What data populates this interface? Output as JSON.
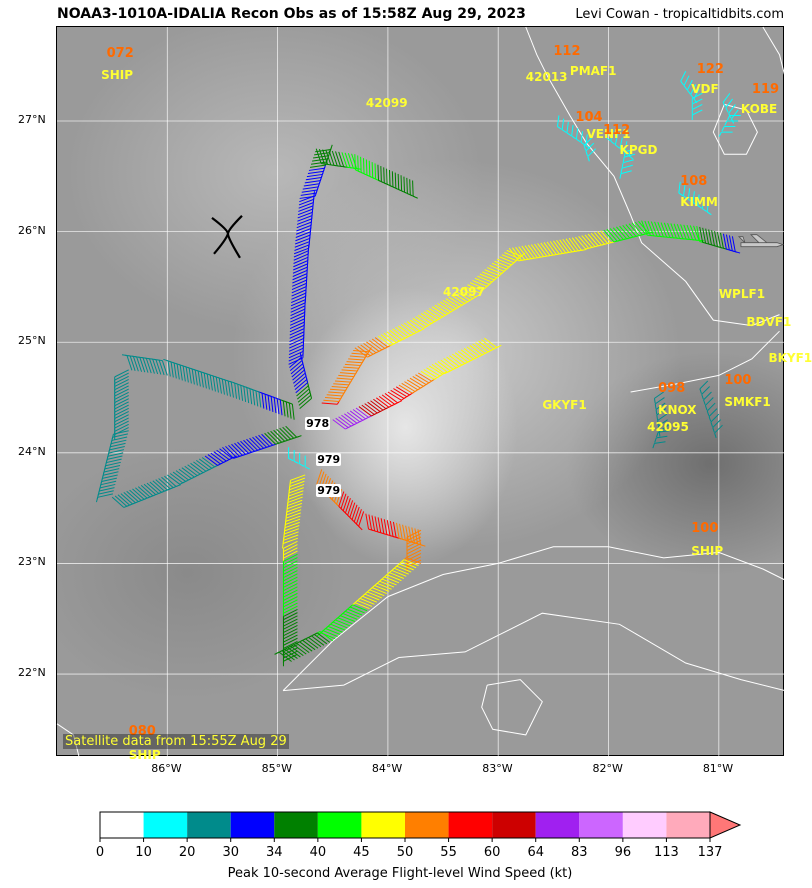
{
  "header": {
    "title": "NOAA3-1010A-IDALIA Recon Obs as of 15:58Z Aug 29, 2023",
    "credit": "Levi Cowan - tropicaltidbits.com"
  },
  "map": {
    "extent": {
      "lon_min": -87.0,
      "lon_max": -80.4,
      "lat_min": 21.25,
      "lat_max": 27.85
    },
    "lon_ticks": [
      {
        "value": -86,
        "label": "86°W"
      },
      {
        "value": -85,
        "label": "85°W"
      },
      {
        "value": -84,
        "label": "84°W"
      },
      {
        "value": -83,
        "label": "83°W"
      },
      {
        "value": -82,
        "label": "82°W"
      },
      {
        "value": -81,
        "label": "81°W"
      }
    ],
    "lat_ticks": [
      {
        "value": 27,
        "label": "27°N"
      },
      {
        "value": 26,
        "label": "26°N"
      },
      {
        "value": 25,
        "label": "25°N"
      },
      {
        "value": 24,
        "label": "24°N"
      },
      {
        "value": 23,
        "label": "23°N"
      },
      {
        "value": 22,
        "label": "22°N"
      }
    ],
    "satellite_note": "Satellite data from 15:55Z Aug 29",
    "grid": true,
    "storm_symbol": {
      "lon": -85.45,
      "lat": 25.98
    }
  },
  "stations": [
    {
      "id": "SHIP",
      "lon": -86.6,
      "lat": 27.48
    },
    {
      "id": "42099",
      "lon": -84.2,
      "lat": 27.23
    },
    {
      "id": "42013",
      "lon": -82.75,
      "lat": 27.46
    },
    {
      "id": "PMAF1",
      "lon": -82.35,
      "lat": 27.52
    },
    {
      "id": "VDF",
      "lon": -81.25,
      "lat": 27.35
    },
    {
      "id": "KOBE",
      "lon": -80.8,
      "lat": 27.17
    },
    {
      "id": "VENF1",
      "lon": -82.2,
      "lat": 26.95
    },
    {
      "id": "KPGD",
      "lon": -81.9,
      "lat": 26.8
    },
    {
      "id": "KIMM",
      "lon": -81.35,
      "lat": 26.33
    },
    {
      "id": "WPLF1",
      "lon": -81.0,
      "lat": 25.5
    },
    {
      "id": "BDVF1",
      "lon": -80.75,
      "lat": 25.25
    },
    {
      "id": "BKYF1",
      "lon": -80.55,
      "lat": 24.92
    },
    {
      "id": "42097",
      "lon": -83.5,
      "lat": 25.52
    },
    {
      "id": "GKYF1",
      "lon": -82.6,
      "lat": 24.5
    },
    {
      "id": "KNOX",
      "lon": -81.55,
      "lat": 24.45
    },
    {
      "id": "SMKF1",
      "lon": -80.95,
      "lat": 24.52
    },
    {
      "id": "42095",
      "lon": -81.65,
      "lat": 24.3
    },
    {
      "id": "SHIP",
      "lon": -81.25,
      "lat": 23.18
    },
    {
      "id": "SHIP",
      "lon": -86.35,
      "lat": 21.33
    }
  ],
  "peak_speeds": [
    {
      "value": "072",
      "lon": -86.55,
      "lat": 27.68
    },
    {
      "value": "112",
      "lon": -82.5,
      "lat": 27.7
    },
    {
      "value": "122",
      "lon": -81.2,
      "lat": 27.53
    },
    {
      "value": "119",
      "lon": -80.7,
      "lat": 27.35
    },
    {
      "value": "104",
      "lon": -82.3,
      "lat": 27.1
    },
    {
      "value": "112",
      "lon": -82.05,
      "lat": 26.98
    },
    {
      "value": "108",
      "lon": -81.35,
      "lat": 26.52
    },
    {
      "value": "100",
      "lon": -80.95,
      "lat": 24.72
    },
    {
      "value": "098",
      "lon": -81.55,
      "lat": 24.65
    },
    {
      "value": "100",
      "lon": -81.25,
      "lat": 23.38
    },
    {
      "value": "080",
      "lon": -86.35,
      "lat": 21.55
    }
  ],
  "pressures": [
    {
      "value": "978",
      "lon": -84.75,
      "lat": 24.32
    },
    {
      "value": "979",
      "lon": -84.65,
      "lat": 24.0
    },
    {
      "value": "979",
      "lon": -84.65,
      "lat": 23.72
    }
  ],
  "colorbar": {
    "title": "Peak 10-second Average Flight-level Wind Speed (kt)",
    "bins": [
      {
        "min": 0,
        "max": 10,
        "color": "#ffffff"
      },
      {
        "min": 10,
        "max": 20,
        "color": "#00ffff"
      },
      {
        "min": 20,
        "max": 30,
        "color": "#008b8b"
      },
      {
        "min": 30,
        "max": 34,
        "color": "#0000ff"
      },
      {
        "min": 34,
        "max": 40,
        "color": "#008000"
      },
      {
        "min": 40,
        "max": 45,
        "color": "#00ff00"
      },
      {
        "min": 45,
        "max": 50,
        "color": "#ffff00"
      },
      {
        "min": 50,
        "max": 55,
        "color": "#ff7f00"
      },
      {
        "min": 55,
        "max": 60,
        "color": "#ff0000"
      },
      {
        "min": 60,
        "max": 64,
        "color": "#cd0000"
      },
      {
        "min": 64,
        "max": 83,
        "color": "#a020f0"
      },
      {
        "min": 83,
        "max": 96,
        "color": "#cc66ff"
      },
      {
        "min": 96,
        "max": 113,
        "color": "#ffccff"
      },
      {
        "min": 113,
        "max": 137,
        "color": "#ffaabb"
      }
    ],
    "tick_labels": [
      "0",
      "10",
      "20",
      "30",
      "34",
      "40",
      "45",
      "50",
      "55",
      "60",
      "64",
      "83",
      "96",
      "113",
      "137"
    ],
    "extend_color": "#ff7777"
  },
  "flight_legs": [
    {
      "name": "north-leg",
      "points": [
        {
          "lon": -84.8,
          "lat": 24.4,
          "kt": 35
        },
        {
          "lon": -84.9,
          "lat": 24.8,
          "kt": 32
        },
        {
          "lon": -84.88,
          "lat": 25.3,
          "kt": 31
        },
        {
          "lon": -84.85,
          "lat": 25.8,
          "kt": 30
        },
        {
          "lon": -84.8,
          "lat": 26.3,
          "kt": 31
        },
        {
          "lon": -84.65,
          "lat": 26.75,
          "kt": 36
        },
        {
          "lon": -84.3,
          "lat": 26.7,
          "kt": 42
        },
        {
          "lon": -83.75,
          "lat": 26.45,
          "kt": 36
        }
      ]
    },
    {
      "name": "west-loop",
      "points": [
        {
          "lon": -84.85,
          "lat": 24.3,
          "kt": 36
        },
        {
          "lon": -85.4,
          "lat": 24.5,
          "kt": 25
        },
        {
          "lon": -86.0,
          "lat": 24.7,
          "kt": 25
        },
        {
          "lon": -86.35,
          "lat": 24.75,
          "kt": 25
        },
        {
          "lon": -86.35,
          "lat": 24.2,
          "kt": 25
        },
        {
          "lon": -86.5,
          "lat": 23.6,
          "kt": 26
        },
        {
          "lon": -86.0,
          "lat": 23.8,
          "kt": 28
        },
        {
          "lon": -85.5,
          "lat": 24.05,
          "kt": 31
        },
        {
          "lon": -84.9,
          "lat": 24.25,
          "kt": 36
        }
      ]
    },
    {
      "name": "northeast-leg",
      "points": [
        {
          "lon": -84.6,
          "lat": 24.45,
          "kt": 55
        },
        {
          "lon": -84.3,
          "lat": 24.95,
          "kt": 52
        },
        {
          "lon": -83.8,
          "lat": 25.2,
          "kt": 47
        },
        {
          "lon": -83.3,
          "lat": 25.5,
          "kt": 48
        },
        {
          "lon": -82.9,
          "lat": 25.85,
          "kt": 48
        },
        {
          "lon": -82.3,
          "lat": 25.95,
          "kt": 47
        },
        {
          "lon": -81.7,
          "lat": 26.1,
          "kt": 42
        },
        {
          "lon": -81.2,
          "lat": 26.05,
          "kt": 40
        },
        {
          "lon": -80.85,
          "lat": 25.95,
          "kt": 31
        }
      ]
    },
    {
      "name": "east-leg",
      "points": [
        {
          "lon": -84.5,
          "lat": 24.3,
          "kt": 70
        },
        {
          "lon": -84.0,
          "lat": 24.55,
          "kt": 57
        },
        {
          "lon": -83.6,
          "lat": 24.8,
          "kt": 47
        },
        {
          "lon": -83.1,
          "lat": 25.05,
          "kt": 46
        }
      ]
    },
    {
      "name": "southeast-leg",
      "points": [
        {
          "lon": -84.6,
          "lat": 23.85,
          "kt": 52
        },
        {
          "lon": -84.2,
          "lat": 23.45,
          "kt": 58
        },
        {
          "lon": -83.7,
          "lat": 23.3,
          "kt": 52
        },
        {
          "lon": -83.7,
          "lat": 23.0,
          "kt": 50
        },
        {
          "lon": -84.1,
          "lat": 22.65,
          "kt": 46
        },
        {
          "lon": -84.5,
          "lat": 22.3,
          "kt": 40
        },
        {
          "lon": -84.9,
          "lat": 22.1,
          "kt": 36
        }
      ]
    },
    {
      "name": "south-leg",
      "points": [
        {
          "lon": -84.75,
          "lat": 23.8,
          "kt": 48
        },
        {
          "lon": -84.82,
          "lat": 23.2,
          "kt": 46
        },
        {
          "lon": -84.82,
          "lat": 22.7,
          "kt": 41
        },
        {
          "lon": -84.82,
          "lat": 22.15,
          "kt": 36
        }
      ]
    }
  ],
  "surface_obs": [
    {
      "points": [
        {
          "lon": -82.45,
          "lat": 27.05,
          "kt": 15
        },
        {
          "lon": -82.15,
          "lat": 26.85,
          "kt": 15
        },
        {
          "lon": -82.1,
          "lat": 26.7,
          "kt": 15
        }
      ]
    },
    {
      "points": [
        {
          "lon": -82.0,
          "lat": 26.95,
          "kt": 15
        },
        {
          "lon": -81.75,
          "lat": 26.75,
          "kt": 15
        },
        {
          "lon": -81.8,
          "lat": 26.5,
          "kt": 15
        }
      ]
    },
    {
      "points": [
        {
          "lon": -81.3,
          "lat": 27.45,
          "kt": 15
        },
        {
          "lon": -81.15,
          "lat": 27.25,
          "kt": 15
        },
        {
          "lon": -81.15,
          "lat": 27.05,
          "kt": 15
        }
      ]
    },
    {
      "points": [
        {
          "lon": -80.9,
          "lat": 27.25,
          "kt": 15
        },
        {
          "lon": -80.8,
          "lat": 27.05,
          "kt": 15
        },
        {
          "lon": -80.9,
          "lat": 26.85,
          "kt": 15
        }
      ]
    },
    {
      "points": [
        {
          "lon": -81.35,
          "lat": 26.45,
          "kt": 15
        },
        {
          "lon": -81.05,
          "lat": 26.25,
          "kt": 15
        }
      ]
    },
    {
      "points": [
        {
          "lon": -81.5,
          "lat": 24.55,
          "kt": 25
        },
        {
          "lon": -81.45,
          "lat": 24.2,
          "kt": 25
        },
        {
          "lon": -81.5,
          "lat": 24.05,
          "kt": 25
        }
      ]
    },
    {
      "points": [
        {
          "lon": -81.1,
          "lat": 24.65,
          "kt": 25
        },
        {
          "lon": -81.0,
          "lat": 24.35,
          "kt": 25
        },
        {
          "lon": -80.95,
          "lat": 24.2,
          "kt": 25
        }
      ]
    },
    {
      "points": [
        {
          "lon": -84.9,
          "lat": 24.05,
          "kt": 15
        },
        {
          "lon": -84.7,
          "lat": 23.95,
          "kt": 15
        }
      ]
    }
  ],
  "coastlines": [
    {
      "name": "florida-west-coast",
      "points": [
        {
          "lon": -82.75,
          "lat": 27.85
        },
        {
          "lon": -82.65,
          "lat": 27.6
        },
        {
          "lon": -82.55,
          "lat": 27.4
        },
        {
          "lon": -82.35,
          "lat": 27.05
        },
        {
          "lon": -82.2,
          "lat": 26.8
        },
        {
          "lon": -81.95,
          "lat": 26.5
        },
        {
          "lon": -81.8,
          "lat": 26.15
        },
        {
          "lon": -81.7,
          "lat": 25.9
        },
        {
          "lon": -81.3,
          "lat": 25.55
        },
        {
          "lon": -81.05,
          "lat": 25.2
        },
        {
          "lon": -80.7,
          "lat": 25.15
        },
        {
          "lon": -80.45,
          "lat": 25.25
        }
      ]
    },
    {
      "name": "florida-east-coast",
      "points": [
        {
          "lon": -80.6,
          "lat": 27.85
        },
        {
          "lon": -80.45,
          "lat": 27.6
        },
        {
          "lon": -80.4,
          "lat": 27.4
        }
      ]
    },
    {
      "name": "lake-okeechobee",
      "points": [
        {
          "lon": -80.95,
          "lat": 27.15
        },
        {
          "lon": -80.75,
          "lat": 27.1
        },
        {
          "lon": -80.65,
          "lat": 26.9
        },
        {
          "lon": -80.75,
          "lat": 26.7
        },
        {
          "lon": -80.95,
          "lat": 26.7
        },
        {
          "lon": -81.05,
          "lat": 26.9
        },
        {
          "lon": -80.95,
          "lat": 27.15
        }
      ]
    },
    {
      "name": "florida-keys",
      "points": [
        {
          "lon": -81.8,
          "lat": 24.55
        },
        {
          "lon": -81.4,
          "lat": 24.62
        },
        {
          "lon": -81.0,
          "lat": 24.7
        },
        {
          "lon": -80.7,
          "lat": 24.85
        },
        {
          "lon": -80.45,
          "lat": 25.1
        }
      ]
    },
    {
      "name": "cuba-north-coast",
      "points": [
        {
          "lon": -84.95,
          "lat": 21.85
        },
        {
          "lon": -84.5,
          "lat": 22.3
        },
        {
          "lon": -84.0,
          "lat": 22.7
        },
        {
          "lon": -83.5,
          "lat": 22.9
        },
        {
          "lon": -83.0,
          "lat": 23.0
        },
        {
          "lon": -82.5,
          "lat": 23.15
        },
        {
          "lon": -82.0,
          "lat": 23.15
        },
        {
          "lon": -81.5,
          "lat": 23.05
        },
        {
          "lon": -81.0,
          "lat": 23.1
        },
        {
          "lon": -80.6,
          "lat": 22.95
        },
        {
          "lon": -80.4,
          "lat": 22.85
        }
      ]
    },
    {
      "name": "cuba-south-coast",
      "points": [
        {
          "lon": -84.95,
          "lat": 21.85
        },
        {
          "lon": -84.4,
          "lat": 21.9
        },
        {
          "lon": -83.9,
          "lat": 22.15
        },
        {
          "lon": -83.3,
          "lat": 22.2
        },
        {
          "lon": -82.6,
          "lat": 22.55
        },
        {
          "lon": -81.9,
          "lat": 22.45
        },
        {
          "lon": -81.3,
          "lat": 22.1
        },
        {
          "lon": -80.8,
          "lat": 21.95
        },
        {
          "lon": -80.4,
          "lat": 21.85
        }
      ]
    },
    {
      "name": "isla-de-la-juventud",
      "points": [
        {
          "lon": -83.1,
          "lat": 21.9
        },
        {
          "lon": -82.8,
          "lat": 21.95
        },
        {
          "lon": -82.6,
          "lat": 21.75
        },
        {
          "lon": -82.75,
          "lat": 21.45
        },
        {
          "lon": -83.05,
          "lat": 21.5
        },
        {
          "lon": -83.15,
          "lat": 21.7
        },
        {
          "lon": -83.1,
          "lat": 21.9
        }
      ]
    },
    {
      "name": "yucatan-tip",
      "points": [
        {
          "lon": -87.0,
          "lat": 21.55
        },
        {
          "lon": -86.85,
          "lat": 21.45
        },
        {
          "lon": -86.8,
          "lat": 21.25
        }
      ]
    }
  ]
}
